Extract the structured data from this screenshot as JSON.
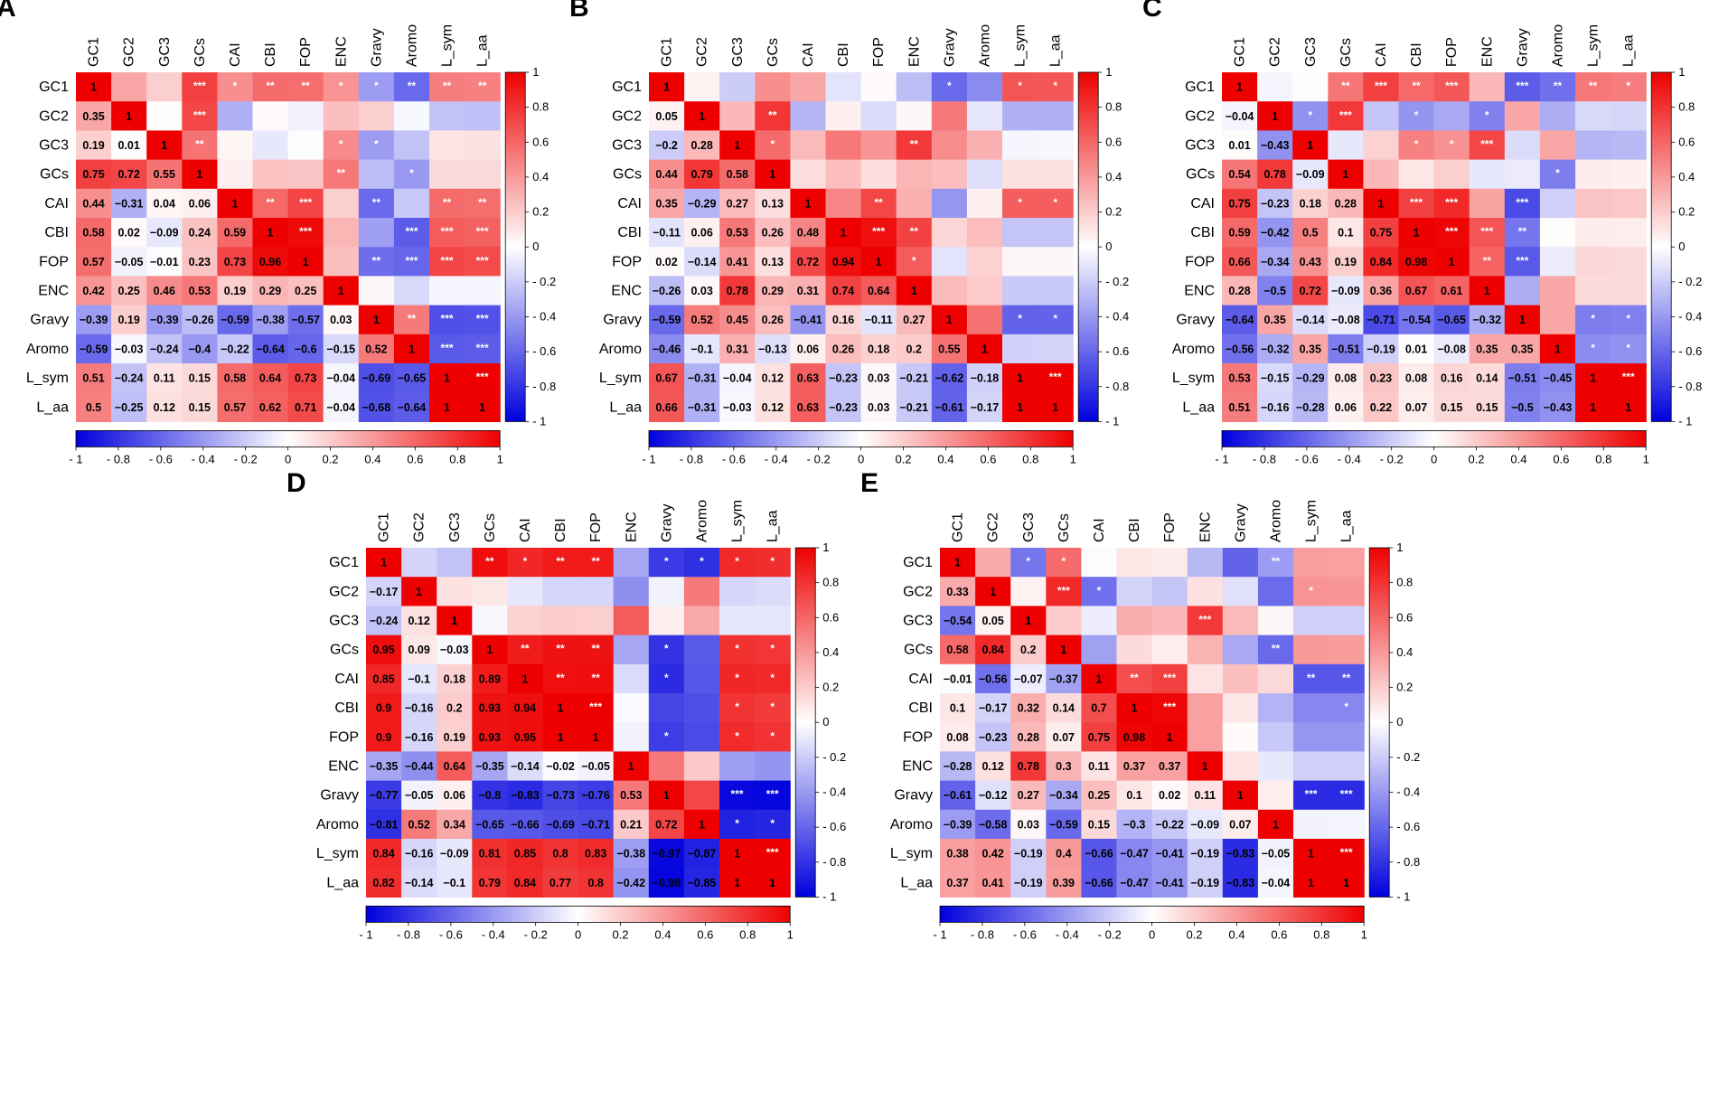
{
  "figure": {
    "labels": [
      "GC1",
      "GC2",
      "GC3",
      "GCs",
      "CAI",
      "CBI",
      "FOP",
      "ENC",
      "Gravy",
      "Aromo",
      "L_sym",
      "L_aa"
    ],
    "colorbar": {
      "min": -1,
      "max": 1,
      "colors": {
        "low": "#0000dd",
        "mid": "#ffffff",
        "high": "#ee0000"
      }
    }
  },
  "chart_data": [
    {
      "type": "heatmap",
      "panel": "A",
      "title": "A",
      "labels": [
        "GC1",
        "GC2",
        "GC3",
        "GCs",
        "CAI",
        "CBI",
        "FOP",
        "ENC",
        "Gravy",
        "Aromo",
        "L_sym",
        "L_aa"
      ],
      "lower": [
        [
          "1"
        ],
        [
          "0.35",
          "1"
        ],
        [
          "0.19",
          "0.01",
          "1"
        ],
        [
          "0.75",
          "0.72",
          "0.55",
          "1"
        ],
        [
          "0.44",
          "-0.31",
          "0.04",
          "0.06",
          "1"
        ],
        [
          "0.58",
          "0.02",
          "-0.09",
          "0.24",
          "0.59",
          "1"
        ],
        [
          "0.57",
          "-0.05",
          "-0.01",
          "0.23",
          "0.73",
          "0.96",
          "1"
        ],
        [
          "0.42",
          "0.25",
          "0.46",
          "0.53",
          "0.19",
          "0.29",
          "0.25",
          "1"
        ],
        [
          "-0.39",
          "0.19",
          "-0.39",
          "-0.26",
          "-0.59",
          "-0.38",
          "-0.57",
          "0.03",
          "1"
        ],
        [
          "-0.59",
          "-0.03",
          "-0.24",
          "-0.4",
          "-0.22",
          "-0.64",
          "-0.6",
          "-0.15",
          "0.52",
          "1"
        ],
        [
          "0.51",
          "-0.24",
          "0.11",
          "0.15",
          "0.58",
          "0.64",
          "0.73",
          "-0.04",
          "-0.69",
          "-0.65",
          "1"
        ],
        [
          "0.5",
          "-0.25",
          "0.12",
          "0.15",
          "0.57",
          "0.62",
          "0.71",
          "-0.04",
          "-0.68",
          "-0.64",
          "1",
          "1"
        ]
      ],
      "upper_sig": [
        [
          "",
          "",
          "***",
          "*",
          "**",
          "**",
          "*",
          "*",
          "**",
          "**",
          "**"
        ],
        [
          "",
          "***",
          "",
          "",
          "",
          "",
          "",
          "",
          "",
          "",
          ""
        ],
        [
          "**",
          "",
          "",
          "",
          "*",
          "*",
          "",
          "",
          ""
        ],
        [
          "",
          "",
          "",
          "**",
          "",
          "*",
          "",
          ""
        ],
        [
          "**",
          "***",
          "",
          "**",
          "",
          "**",
          "**"
        ],
        [
          "***",
          "",
          "",
          "***",
          "***",
          "***"
        ],
        [
          "",
          "**",
          "***",
          "***",
          "***"
        ],
        [
          "",
          "",
          "",
          ""
        ],
        [
          "**",
          "***",
          "***"
        ],
        [
          "***",
          "***"
        ],
        [
          "***"
        ]
      ]
    },
    {
      "type": "heatmap",
      "panel": "B",
      "title": "B",
      "labels": [
        "GC1",
        "GC2",
        "GC3",
        "GCs",
        "CAI",
        "CBI",
        "FOP",
        "ENC",
        "Gravy",
        "Aromo",
        "L_sym",
        "L_aa"
      ],
      "lower": [
        [
          "1"
        ],
        [
          "0.05",
          "1"
        ],
        [
          "-0.2",
          "0.28",
          "1"
        ],
        [
          "0.44",
          "0.79",
          "0.58",
          "1"
        ],
        [
          "0.35",
          "-0.29",
          "0.27",
          "0.13",
          "1"
        ],
        [
          "-0.11",
          "0.06",
          "0.53",
          "0.26",
          "0.48",
          "1"
        ],
        [
          "0.02",
          "-0.14",
          "0.41",
          "0.13",
          "0.72",
          "0.94",
          "1"
        ],
        [
          "-0.26",
          "0.03",
          "0.78",
          "0.29",
          "0.31",
          "0.74",
          "0.64",
          "1"
        ],
        [
          "-0.59",
          "0.52",
          "0.45",
          "0.26",
          "-0.41",
          "0.16",
          "-0.11",
          "0.27",
          "1"
        ],
        [
          "-0.46",
          "-0.1",
          "0.31",
          "-0.13",
          "0.06",
          "0.26",
          "0.18",
          "0.2",
          "0.55",
          "1"
        ],
        [
          "0.67",
          "-0.31",
          "-0.04",
          "0.12",
          "0.63",
          "-0.23",
          "0.03",
          "-0.21",
          "-0.62",
          "-0.18",
          "1"
        ],
        [
          "0.66",
          "-0.31",
          "-0.03",
          "0.12",
          "0.63",
          "-0.23",
          "0.03",
          "-0.21",
          "-0.61",
          "-0.17",
          "1",
          "1"
        ]
      ],
      "upper_sig": [
        [
          "",
          "",
          "",
          "",
          "",
          "",
          "",
          "*",
          "",
          "*",
          "*"
        ],
        [
          "",
          "**",
          "",
          "",
          "",
          "",
          "",
          "",
          "",
          ""
        ],
        [
          "*",
          "",
          "",
          "",
          "**",
          "",
          "",
          "",
          ""
        ],
        [
          "",
          "",
          "",
          "",
          "",
          "",
          "",
          ""
        ],
        [
          "",
          "**",
          "",
          "",
          "",
          "*",
          "*"
        ],
        [
          "***",
          "**",
          "",
          "",
          "",
          ""
        ],
        [
          "*",
          "",
          "",
          "",
          ""
        ],
        [
          "",
          "",
          "",
          ""
        ],
        [
          "",
          "*",
          "*"
        ],
        [
          "",
          ""
        ],
        [
          "***"
        ]
      ]
    },
    {
      "type": "heatmap",
      "panel": "C",
      "title": "C",
      "labels": [
        "GC1",
        "GC2",
        "GC3",
        "GCs",
        "CAI",
        "CBI",
        "FOP",
        "ENC",
        "Gravy",
        "Aromo",
        "L_sym",
        "L_aa"
      ],
      "lower": [
        [
          "1"
        ],
        [
          "-0.04",
          "1"
        ],
        [
          "0.01",
          "-0.43",
          "1"
        ],
        [
          "0.54",
          "0.78",
          "-0.09",
          "1"
        ],
        [
          "0.75",
          "-0.23",
          "0.18",
          "0.28",
          "1"
        ],
        [
          "0.59",
          "-0.42",
          "0.5",
          "0.1",
          "0.75",
          "1"
        ],
        [
          "0.66",
          "-0.34",
          "0.43",
          "0.19",
          "0.84",
          "0.98",
          "1"
        ],
        [
          "0.28",
          "-0.5",
          "0.72",
          "-0.09",
          "0.36",
          "0.67",
          "0.61",
          "1"
        ],
        [
          "-0.64",
          "0.35",
          "-0.14",
          "-0.08",
          "-0.71",
          "-0.54",
          "-0.65",
          "-0.32",
          "1"
        ],
        [
          "-0.56",
          "-0.32",
          "0.35",
          "-0.51",
          "-0.19",
          "0.01",
          "-0.08",
          "0.35",
          "0.35",
          "1"
        ],
        [
          "0.53",
          "-0.15",
          "-0.29",
          "0.08",
          "0.23",
          "0.08",
          "0.16",
          "0.14",
          "-0.51",
          "-0.45",
          "1"
        ],
        [
          "0.51",
          "-0.16",
          "-0.28",
          "0.06",
          "0.22",
          "0.07",
          "0.15",
          "0.15",
          "-0.5",
          "-0.43",
          "1",
          "1"
        ]
      ],
      "upper_sig": [
        [
          "",
          "",
          "**",
          "***",
          "**",
          "***",
          "",
          "***",
          "**",
          "**",
          "*"
        ],
        [
          "*",
          "***",
          "",
          "*",
          "",
          "*",
          "",
          "",
          "",
          ""
        ],
        [
          "",
          "",
          "*",
          "*",
          "***",
          "",
          "",
          "",
          ""
        ],
        [
          "",
          "",
          "",
          "",
          "",
          "*",
          "",
          ""
        ],
        [
          "***",
          "***",
          "",
          "***",
          "",
          "",
          ""
        ],
        [
          "***",
          "***",
          "**",
          "",
          "",
          ""
        ],
        [
          "**",
          "***",
          "",
          "",
          ""
        ],
        [
          "",
          "",
          "",
          ""
        ],
        [
          "",
          "*",
          "*"
        ],
        [
          "*",
          "*"
        ],
        [
          "***"
        ]
      ]
    },
    {
      "type": "heatmap",
      "panel": "D",
      "title": "D",
      "labels": [
        "GC1",
        "GC2",
        "GC3",
        "GCs",
        "CAI",
        "CBI",
        "FOP",
        "ENC",
        "Gravy",
        "Aromo",
        "L_sym",
        "L_aa"
      ],
      "lower": [
        [
          "1"
        ],
        [
          "-0.17",
          "1"
        ],
        [
          "-0.24",
          "0.12",
          "1"
        ],
        [
          "0.95",
          "0.09",
          "-0.03",
          "1"
        ],
        [
          "0.85",
          "-0.1",
          "0.18",
          "0.89",
          "1"
        ],
        [
          "0.9",
          "-0.16",
          "0.2",
          "0.93",
          "0.94",
          "1"
        ],
        [
          "0.9",
          "-0.16",
          "0.19",
          "0.93",
          "0.95",
          "1",
          "1"
        ],
        [
          "-0.35",
          "-0.44",
          "0.64",
          "-0.35",
          "-0.14",
          "-0.02",
          "-0.05",
          "1"
        ],
        [
          "-0.77",
          "-0.05",
          "0.06",
          "-0.8",
          "-0.83",
          "-0.73",
          "-0.76",
          "0.53",
          "1"
        ],
        [
          "-0.81",
          "0.52",
          "0.34",
          "-0.65",
          "-0.66",
          "-0.69",
          "-0.71",
          "0.21",
          "0.72",
          "1"
        ],
        [
          "0.84",
          "-0.16",
          "-0.09",
          "0.81",
          "0.85",
          "0.8",
          "0.83",
          "-0.38",
          "-0.97",
          "-0.87",
          "1"
        ],
        [
          "0.82",
          "-0.14",
          "-0.1",
          "0.79",
          "0.84",
          "0.77",
          "0.8",
          "-0.42",
          "-0.98",
          "-0.85",
          "1",
          "1"
        ]
      ],
      "upper_sig": [
        [
          "",
          "",
          "**",
          "*",
          "**",
          "**",
          "",
          "*",
          "*",
          "*",
          "*"
        ],
        [
          "",
          "",
          "",
          "",
          "",
          "",
          "",
          "",
          "",
          ""
        ],
        [
          "",
          "",
          "",
          "",
          "",
          "",
          "",
          ""
        ],
        [
          "**",
          "**",
          "**",
          "",
          "*",
          "",
          "*",
          "*"
        ],
        [
          "**",
          "**",
          "",
          "*",
          "",
          "*",
          "*"
        ],
        [
          "***",
          "",
          "",
          "",
          "*",
          "*"
        ],
        [
          "",
          "*",
          "",
          "*",
          "*"
        ],
        [
          "",
          "",
          "",
          ""
        ],
        [
          "",
          "***",
          "***"
        ],
        [
          "*",
          "*"
        ],
        [
          "***"
        ]
      ]
    },
    {
      "type": "heatmap",
      "panel": "E",
      "title": "E",
      "labels": [
        "GC1",
        "GC2",
        "GC3",
        "GCs",
        "CAI",
        "CBI",
        "FOP",
        "ENC",
        "Gravy",
        "Aromo",
        "L_sym",
        "L_aa"
      ],
      "lower": [
        [
          "1"
        ],
        [
          "0.33",
          "1"
        ],
        [
          "-0.54",
          "0.05",
          "1"
        ],
        [
          "0.58",
          "0.84",
          "0.2",
          "1"
        ],
        [
          "-0.01",
          "-0.56",
          "-0.07",
          "-0.37",
          "1"
        ],
        [
          "0.1",
          "-0.17",
          "0.32",
          "0.14",
          "0.7",
          "1"
        ],
        [
          "0.08",
          "-0.23",
          "0.28",
          "0.07",
          "0.75",
          "0.98",
          "1"
        ],
        [
          "-0.28",
          "0.12",
          "0.78",
          "0.3",
          "0.11",
          "0.37",
          "0.37",
          "1"
        ],
        [
          "-0.61",
          "-0.12",
          "0.27",
          "-0.34",
          "0.25",
          "0.1",
          "0.02",
          "0.11",
          "1"
        ],
        [
          "-0.39",
          "-0.58",
          "0.03",
          "-0.59",
          "0.15",
          "-0.3",
          "-0.22",
          "-0.09",
          "0.07",
          "1"
        ],
        [
          "0.38",
          "0.42",
          "-0.19",
          "0.4",
          "-0.66",
          "-0.47",
          "-0.41",
          "-0.19",
          "-0.83",
          "-0.05",
          "1"
        ],
        [
          "0.37",
          "0.41",
          "-0.19",
          "0.39",
          "-0.66",
          "-0.47",
          "-0.41",
          "-0.19",
          "-0.83",
          "-0.04",
          "1",
          "1"
        ]
      ],
      "upper_sig": [
        [
          "",
          "*",
          "*",
          "",
          "",
          "",
          "",
          "",
          "**",
          "",
          ""
        ],
        [
          "",
          "***",
          "*",
          "",
          "",
          "",
          "",
          "",
          "*",
          "",
          ""
        ],
        [
          "",
          "",
          "",
          "",
          "***",
          "",
          "",
          "",
          ""
        ],
        [
          "",
          "",
          "",
          "",
          "",
          "**",
          "",
          ""
        ],
        [
          "**",
          "***",
          "",
          "",
          "",
          "**",
          "**"
        ],
        [
          "***",
          "",
          "",
          "",
          "",
          "*"
        ],
        [
          "",
          "",
          "",
          "",
          ""
        ],
        [
          "",
          "",
          "",
          ""
        ],
        [
          "",
          "***",
          "***"
        ],
        [
          "",
          ""
        ],
        [
          "***"
        ]
      ]
    }
  ]
}
